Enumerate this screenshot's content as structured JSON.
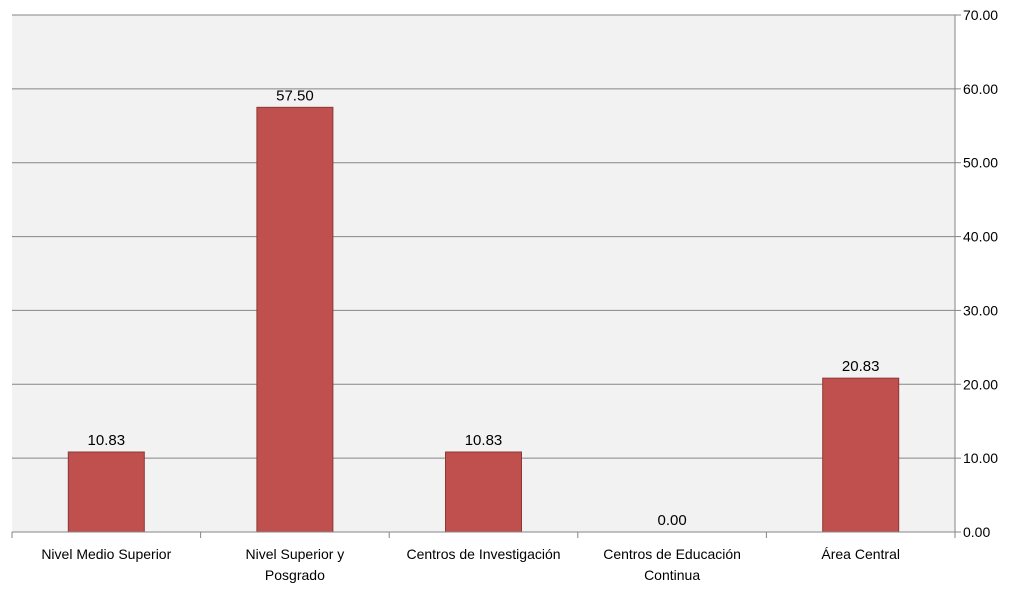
{
  "chart_data": {
    "type": "bar",
    "categories": [
      [
        "Nivel Medio Superior"
      ],
      [
        "Nivel Superior y",
        "Posgrado"
      ],
      [
        "Centros de Investigación"
      ],
      [
        "Centros de Educación",
        "Continua"
      ],
      [
        "Área Central"
      ]
    ],
    "values": [
      10.83,
      57.5,
      10.83,
      0.0,
      20.83
    ],
    "data_labels": [
      "10.83",
      "57.50",
      "10.83",
      "0.00",
      "20.83"
    ],
    "y_ticks": [
      "0.00",
      "10.00",
      "20.00",
      "30.00",
      "40.00",
      "50.00",
      "60.00",
      "70.00"
    ],
    "ylim": [
      0,
      70
    ],
    "y_axis_side": "right",
    "grid": true,
    "title": "",
    "xlabel": "",
    "ylabel": "",
    "colors": {
      "bar_fill": "#c0504d",
      "bar_stroke": "#8c3836",
      "plot_background": "#f2f2f2",
      "gridline": "#868686",
      "axis": "#868686"
    }
  }
}
